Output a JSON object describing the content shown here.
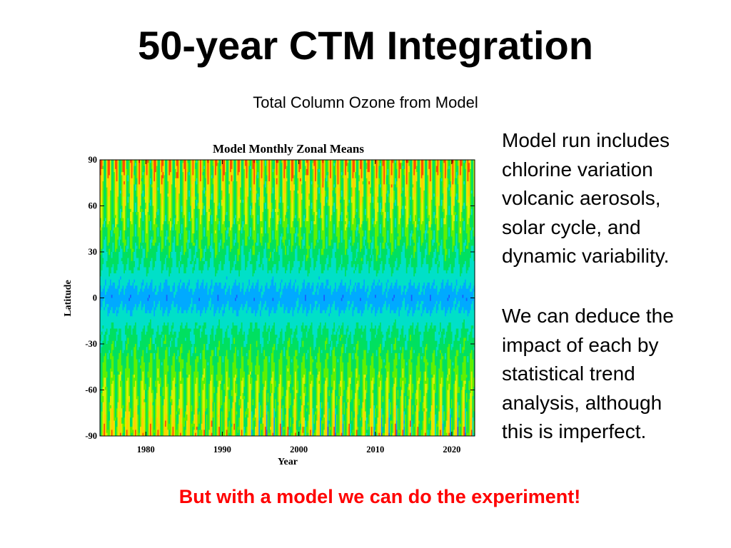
{
  "slide": {
    "title": "50-year CTM Integration",
    "subtitle": "Total Column Ozone from Model",
    "side_text_1": [
      "Model run includes",
      "chlorine variation",
      "volcanic aerosols,",
      "solar cycle, and",
      "dynamic variability."
    ],
    "side_text_2": [
      "We can deduce the",
      "impact of each by",
      "statistical trend",
      "analysis, although",
      "this is imperfect."
    ],
    "bottom_text": "But with a model we can do the experiment!",
    "bottom_color": "#ff0000"
  },
  "chart_data": {
    "type": "heatmap",
    "title": "Model Monthly Zonal Means",
    "xlabel": "Year",
    "ylabel": "Latitude",
    "xlim": [
      1974,
      2023
    ],
    "ylim": [
      -90,
      90
    ],
    "xticks": [
      "1980",
      "1990",
      "2000",
      "2010",
      "2020"
    ],
    "yticks": [
      "90",
      "60",
      "30",
      "0",
      "-30",
      "-60",
      "-90"
    ],
    "colorscale": [
      "#0000c8",
      "#1a5cff",
      "#00aaff",
      "#00e0c8",
      "#00e060",
      "#60f000",
      "#d8f000",
      "#ffd000",
      "#ff5000",
      "#e00000"
    ],
    "pattern": "seasonal cycle each year: high ozone at high northern latitudes in spring, low ozone in the tropics near 0, deep minima near -90 in southern spring after about 1985"
  }
}
